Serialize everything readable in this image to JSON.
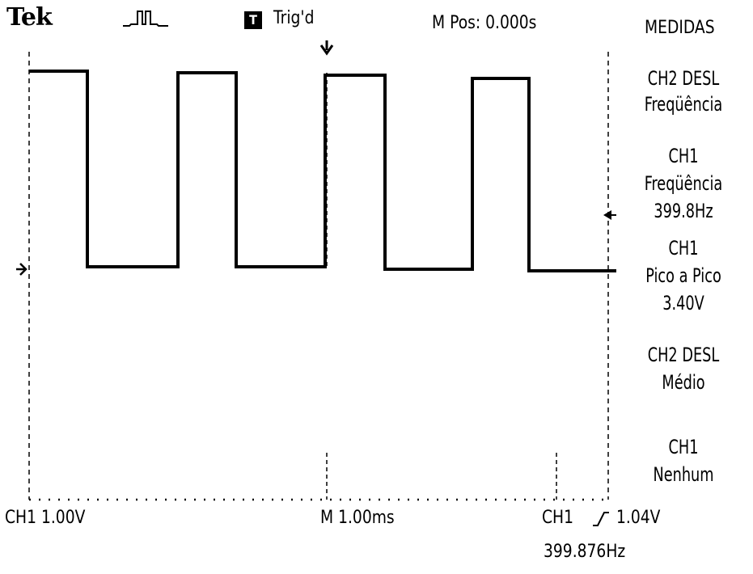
{
  "header": {
    "brand": "Tek",
    "acquisition_icon": "pulse-waveform-icon",
    "trigger_status_badge": "T",
    "trigger_status": "Trig'd",
    "m_pos": "M Pos: 0.000s"
  },
  "menu": {
    "title": "MEDIDAS",
    "items": [
      {
        "source": "CH2 DESL",
        "type": "Freqüência",
        "value": ""
      },
      {
        "source": "CH1",
        "type": "Freqüência",
        "value": "399.8Hz"
      },
      {
        "source": "CH1",
        "type": "Pico a Pico",
        "value": "3.40V"
      },
      {
        "source": "CH2 DESL",
        "type": "Médio",
        "value": ""
      },
      {
        "source": "CH1",
        "type": "Nenhum",
        "value": ""
      }
    ]
  },
  "status": {
    "ch1_scale": "CH1  1.00V",
    "timebase": "M 1.00ms",
    "trigger": "CH1",
    "trigger_slope_icon": "rising-edge-icon",
    "trigger_level": "1.04V",
    "frequency_readout": "399.876Hz"
  },
  "waveform": {
    "channel": "CH1",
    "shape": "square",
    "colors": {
      "trace": "#000000",
      "background": "#ffffff"
    }
  }
}
